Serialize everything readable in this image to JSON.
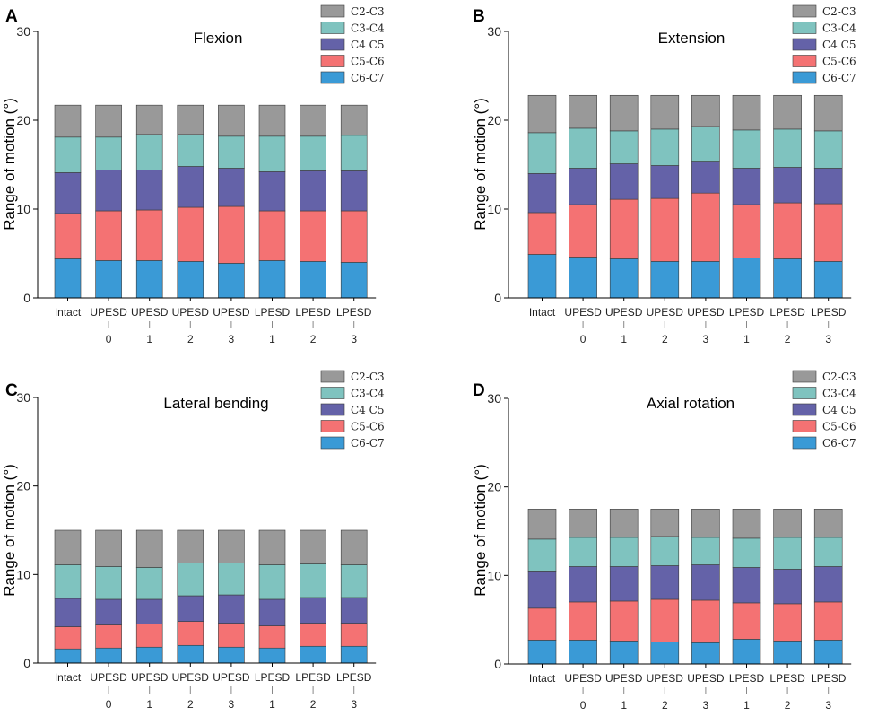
{
  "figure": {
    "series_colors": {
      "C6-C7": "#3a9ad6",
      "C5-C6": "#f47273",
      "C4 C5": "#6462a8",
      "C3-C4": "#7fc3bf",
      "C2-C3": "#999999"
    }
  },
  "chart_data": [
    {
      "panel": "A",
      "type": "bar",
      "stacked": true,
      "title": "Flexion",
      "xlabel": "",
      "ylabel": "Range of motion (°)",
      "ylim": [
        0,
        30
      ],
      "yticks": [
        0,
        10,
        20,
        30
      ],
      "categories": [
        "Intact",
        "UPESD 0",
        "UPESD 1",
        "UPESD 2",
        "UPESD 3",
        "LPESD 1",
        "LPESD 2",
        "LPESD 3"
      ],
      "category_labels": [
        {
          "top": "Intact",
          "bottom": ""
        },
        {
          "top": "UPESD",
          "bottom": "0"
        },
        {
          "top": "UPESD",
          "bottom": "1"
        },
        {
          "top": "UPESD",
          "bottom": "2"
        },
        {
          "top": "UPESD",
          "bottom": "3"
        },
        {
          "top": "LPESD",
          "bottom": "1"
        },
        {
          "top": "LPESD",
          "bottom": "2"
        },
        {
          "top": "LPESD",
          "bottom": "3"
        }
      ],
      "legend": [
        "C2-C3",
        "C3-C4",
        "C4 C5",
        "C5-C6",
        "C6-C7"
      ],
      "series": [
        {
          "name": "C6-C7",
          "values": [
            4.4,
            4.2,
            4.2,
            4.1,
            3.9,
            4.2,
            4.1,
            4.0
          ]
        },
        {
          "name": "C5-C6",
          "values": [
            5.1,
            5.6,
            5.7,
            6.1,
            6.4,
            5.6,
            5.7,
            5.8
          ]
        },
        {
          "name": "C4 C5",
          "values": [
            4.6,
            4.6,
            4.5,
            4.6,
            4.3,
            4.4,
            4.5,
            4.5
          ]
        },
        {
          "name": "C3-C4",
          "values": [
            4.0,
            3.7,
            4.0,
            3.6,
            3.6,
            4.0,
            3.9,
            4.0
          ]
        },
        {
          "name": "C2-C3",
          "values": [
            3.6,
            3.6,
            3.3,
            3.3,
            3.5,
            3.5,
            3.5,
            3.4
          ]
        }
      ]
    },
    {
      "panel": "B",
      "type": "bar",
      "stacked": true,
      "title": "Extension",
      "xlabel": "",
      "ylabel": "Range of motion (°)",
      "ylim": [
        0,
        30
      ],
      "yticks": [
        0,
        10,
        20,
        30
      ],
      "categories": [
        "Intact",
        "UPESD 0",
        "UPESD 1",
        "UPESD 2",
        "UPESD 3",
        "LPESD 1",
        "LPESD 2",
        "LPESD 3"
      ],
      "category_labels": [
        {
          "top": "Intact",
          "bottom": ""
        },
        {
          "top": "UPESD",
          "bottom": "0"
        },
        {
          "top": "UPESD",
          "bottom": "1"
        },
        {
          "top": "UPESD",
          "bottom": "2"
        },
        {
          "top": "UPESD",
          "bottom": "3"
        },
        {
          "top": "LPESD",
          "bottom": "1"
        },
        {
          "top": "LPESD",
          "bottom": "2"
        },
        {
          "top": "LPESD",
          "bottom": "3"
        }
      ],
      "legend": [
        "C2-C3",
        "C3-C4",
        "C4 C5",
        "C5-C6",
        "C6-C7"
      ],
      "series": [
        {
          "name": "C6-C7",
          "values": [
            4.9,
            4.6,
            4.4,
            4.1,
            4.1,
            4.5,
            4.4,
            4.1
          ]
        },
        {
          "name": "C5-C6",
          "values": [
            4.7,
            5.9,
            6.7,
            7.1,
            7.7,
            6.0,
            6.3,
            6.5
          ]
        },
        {
          "name": "C4 C5",
          "values": [
            4.4,
            4.1,
            4.0,
            3.7,
            3.6,
            4.1,
            4.0,
            4.0
          ]
        },
        {
          "name": "C3-C4",
          "values": [
            4.6,
            4.5,
            3.7,
            4.1,
            3.9,
            4.3,
            4.3,
            4.2
          ]
        },
        {
          "name": "C2-C3",
          "values": [
            4.2,
            3.7,
            4.0,
            3.8,
            3.5,
            3.9,
            3.8,
            4.0
          ]
        }
      ]
    },
    {
      "panel": "C",
      "type": "bar",
      "stacked": true,
      "title": "Lateral bending",
      "xlabel": "",
      "ylabel": "Range of motion (°)",
      "ylim": [
        0,
        30
      ],
      "yticks": [
        0,
        10,
        20,
        30
      ],
      "categories": [
        "Intact",
        "UPESD 0",
        "UPESD 1",
        "UPESD 2",
        "UPESD 3",
        "LPESD 1",
        "LPESD 2",
        "LPESD 3"
      ],
      "category_labels": [
        {
          "top": "Intact",
          "bottom": ""
        },
        {
          "top": "UPESD",
          "bottom": "0"
        },
        {
          "top": "UPESD",
          "bottom": "1"
        },
        {
          "top": "UPESD",
          "bottom": "2"
        },
        {
          "top": "UPESD",
          "bottom": "3"
        },
        {
          "top": "LPESD",
          "bottom": "1"
        },
        {
          "top": "LPESD",
          "bottom": "2"
        },
        {
          "top": "LPESD",
          "bottom": "3"
        }
      ],
      "legend": [
        "C2-C3",
        "C3-C4",
        "C4 C5",
        "C5-C6",
        "C6-C7"
      ],
      "series": [
        {
          "name": "C6-C7",
          "values": [
            1.6,
            1.7,
            1.8,
            2.0,
            1.8,
            1.7,
            1.9,
            1.9
          ]
        },
        {
          "name": "C5-C6",
          "values": [
            2.5,
            2.6,
            2.6,
            2.7,
            2.7,
            2.5,
            2.6,
            2.6
          ]
        },
        {
          "name": "C4 C5",
          "values": [
            3.2,
            2.9,
            2.8,
            2.9,
            3.2,
            3.0,
            2.9,
            2.9
          ]
        },
        {
          "name": "C3-C4",
          "values": [
            3.8,
            3.7,
            3.6,
            3.7,
            3.6,
            3.9,
            3.8,
            3.7
          ]
        },
        {
          "name": "C2-C3",
          "values": [
            3.9,
            4.1,
            4.2,
            3.7,
            3.7,
            3.9,
            3.8,
            3.9
          ]
        }
      ]
    },
    {
      "panel": "D",
      "type": "bar",
      "stacked": true,
      "title": "Axial rotation",
      "xlabel": "",
      "ylabel": "Range of motion (°)",
      "ylim": [
        0,
        30
      ],
      "yticks": [
        0,
        10,
        20,
        30
      ],
      "categories": [
        "Intact",
        "UPESD 0",
        "UPESD 1",
        "UPESD 2",
        "UPESD 3",
        "LPESD 1",
        "LPESD 2",
        "LPESD 3"
      ],
      "category_labels": [
        {
          "top": "Intact",
          "bottom": ""
        },
        {
          "top": "UPESD",
          "bottom": "0"
        },
        {
          "top": "UPESD",
          "bottom": "1"
        },
        {
          "top": "UPESD",
          "bottom": "2"
        },
        {
          "top": "UPESD",
          "bottom": "3"
        },
        {
          "top": "LPESD",
          "bottom": "1"
        },
        {
          "top": "LPESD",
          "bottom": "2"
        },
        {
          "top": "LPESD",
          "bottom": "3"
        }
      ],
      "legend": [
        "C2-C3",
        "C3-C4",
        "C4 C5",
        "C5-C6",
        "C6-C7"
      ],
      "series": [
        {
          "name": "C6-C7",
          "values": [
            2.7,
            2.7,
            2.6,
            2.5,
            2.4,
            2.8,
            2.6,
            2.7
          ]
        },
        {
          "name": "C5-C6",
          "values": [
            3.6,
            4.3,
            4.5,
            4.8,
            4.8,
            4.1,
            4.2,
            4.3
          ]
        },
        {
          "name": "C4 C5",
          "values": [
            4.2,
            4.0,
            3.9,
            3.8,
            4.0,
            4.0,
            3.9,
            4.0
          ]
        },
        {
          "name": "C3-C4",
          "values": [
            3.6,
            3.3,
            3.3,
            3.3,
            3.1,
            3.3,
            3.6,
            3.3
          ]
        },
        {
          "name": "C2-C3",
          "values": [
            3.4,
            3.2,
            3.2,
            3.1,
            3.2,
            3.3,
            3.2,
            3.2
          ]
        }
      ]
    }
  ]
}
